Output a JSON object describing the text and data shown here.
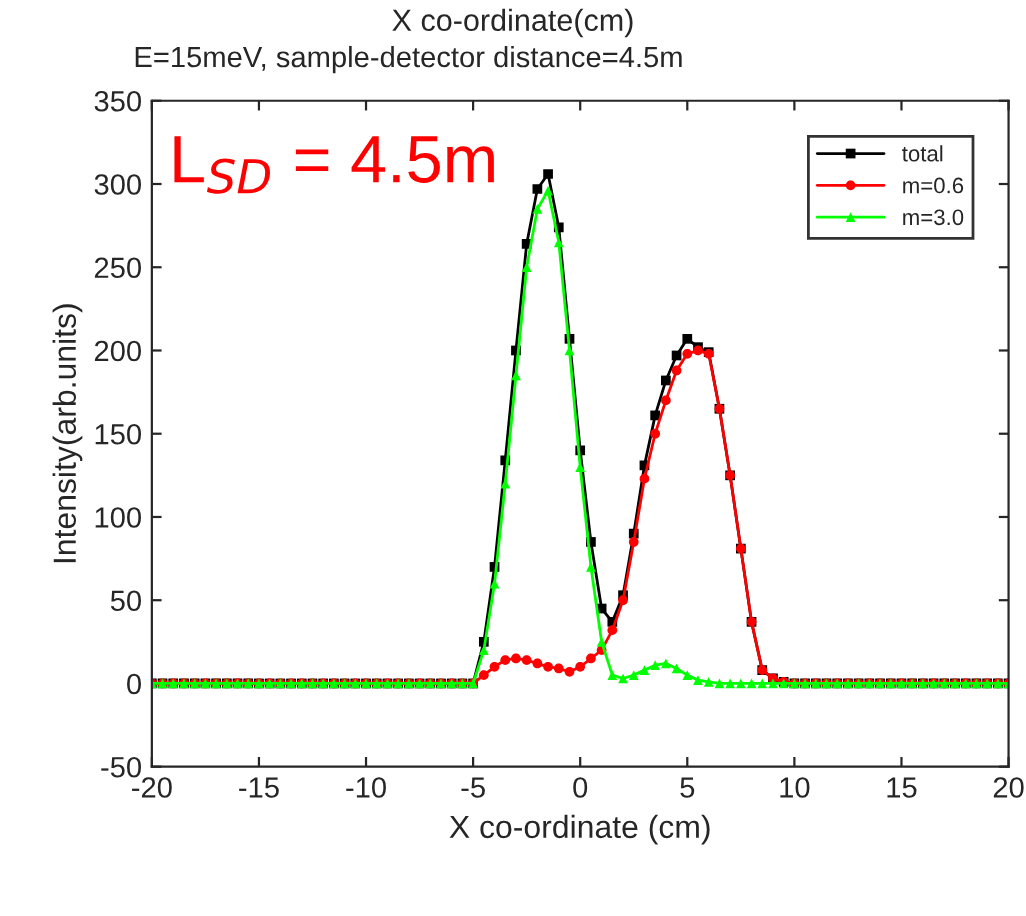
{
  "chart_data": {
    "type": "line",
    "title": "E=15meV, sample-detector distance=4.5m",
    "x2label": "X co-ordinate(cm)",
    "xlabel": "X co-ordinate (cm)",
    "ylabel": "Intensity(arb.units)",
    "annotations": [
      "L$_{SD}$ = 4.5m"
    ],
    "x": [
      -20,
      -19.5,
      -19,
      -18.5,
      -18,
      -17.5,
      -17,
      -16.5,
      -16,
      -15.5,
      -15,
      -14.5,
      -14,
      -13.5,
      -13,
      -12.5,
      -12,
      -11.5,
      -11,
      -10.5,
      -10,
      -9.5,
      -9,
      -8.5,
      -8,
      -7.5,
      -7,
      -6.5,
      -6,
      -5.5,
      -5,
      -4.5,
      -4,
      -3.5,
      -3,
      -2.5,
      -2,
      -1.5,
      -1,
      -0.5,
      0,
      0.5,
      1,
      1.5,
      2,
      2.5,
      3,
      3.5,
      4,
      4.5,
      5,
      5.5,
      6,
      6.5,
      7,
      7.5,
      8,
      8.5,
      9,
      9.5,
      10,
      10.5,
      11,
      11.5,
      12,
      12.5,
      13,
      13.5,
      14,
      14.5,
      15,
      15.5,
      16,
      16.5,
      17,
      17.5,
      18,
      18.5,
      19,
      19.5,
      20
    ],
    "series": [
      {
        "name": "total",
        "color": "#000000",
        "marker": "square",
        "values": [
          0,
          0,
          0,
          0,
          0,
          0,
          0,
          0,
          0,
          0,
          0,
          0,
          0,
          0,
          0,
          0,
          0,
          0,
          0,
          0,
          0,
          0,
          0,
          0,
          0,
          0,
          0,
          0,
          0,
          0,
          0,
          25,
          70,
          134,
          200,
          264,
          297,
          306,
          274,
          207,
          140,
          85,
          45,
          37,
          53,
          90,
          131,
          161,
          182,
          197,
          207,
          202,
          199,
          165,
          125,
          81,
          37,
          8,
          3,
          1,
          0,
          0,
          0,
          0,
          0,
          0,
          0,
          0,
          0,
          0,
          0,
          0,
          0,
          0,
          0,
          0,
          0,
          0,
          0,
          0,
          0
        ]
      },
      {
        "name": "m=0.6",
        "color": "#ff0000",
        "marker": "circle",
        "values": [
          0,
          0,
          0,
          0,
          0,
          0,
          0,
          0,
          0,
          0,
          0,
          0,
          0,
          0,
          0,
          0,
          0,
          0,
          0,
          0,
          0,
          0,
          0,
          0,
          0,
          0,
          0,
          0,
          0,
          0,
          0,
          5,
          10,
          14,
          15,
          14,
          12,
          10,
          9,
          7,
          10,
          15,
          20,
          32,
          50,
          85,
          123,
          150,
          170,
          188,
          198,
          200,
          198,
          165,
          125,
          81,
          37,
          8,
          3,
          1,
          0,
          0,
          0,
          0,
          0,
          0,
          0,
          0,
          0,
          0,
          0,
          0,
          0,
          0,
          0,
          0,
          0,
          0,
          0,
          0,
          0
        ]
      },
      {
        "name": "m=3.0",
        "color": "#00ff00",
        "marker": "triangle",
        "values": [
          0,
          0,
          0,
          0,
          0,
          0,
          0,
          0,
          0,
          0,
          0,
          0,
          0,
          0,
          0,
          0,
          0,
          0,
          0,
          0,
          0,
          0,
          0,
          0,
          0,
          0,
          0,
          0,
          0,
          0,
          0,
          20,
          60,
          120,
          185,
          250,
          285,
          296,
          265,
          200,
          130,
          70,
          25,
          5,
          3,
          5,
          8,
          11,
          12,
          9,
          5,
          2,
          1,
          0,
          0,
          0,
          0,
          0,
          0,
          0,
          0,
          0,
          0,
          0,
          0,
          0,
          0,
          0,
          0,
          0,
          0,
          0,
          0,
          0,
          0,
          0,
          0,
          0,
          0,
          0,
          0
        ]
      }
    ],
    "xlim": [
      -20,
      20
    ],
    "xticks": [
      -20,
      -15,
      -10,
      -5,
      0,
      5,
      10,
      15,
      20
    ],
    "ylim": [
      -50,
      350
    ],
    "yticks": [
      -50,
      0,
      50,
      100,
      150,
      200,
      250,
      300,
      350
    ],
    "legend": "top right",
    "grid": false,
    "line_style": "solid"
  }
}
